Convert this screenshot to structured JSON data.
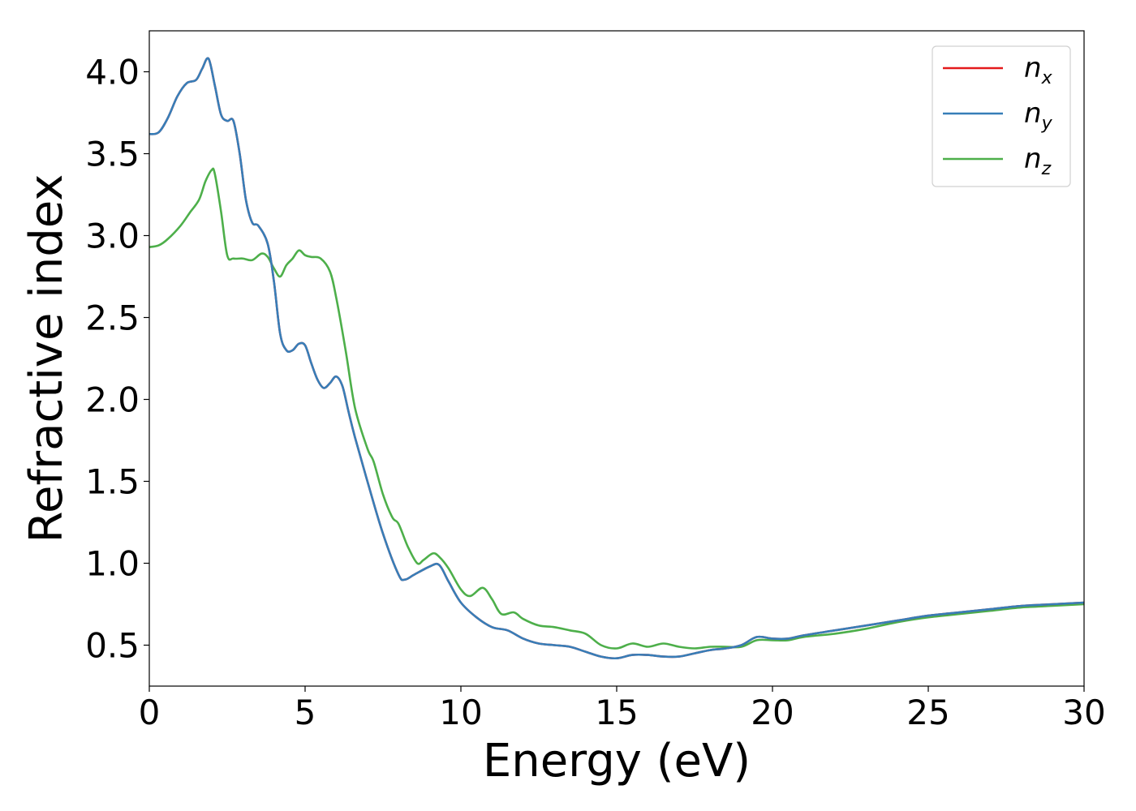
{
  "chart_data": {
    "type": "line",
    "xlabel": "Energy (eV)",
    "ylabel": "Refractive index",
    "xlim": [
      0,
      30
    ],
    "ylim": [
      0.25,
      4.25
    ],
    "xticks": [
      0,
      5,
      10,
      15,
      20,
      25,
      30
    ],
    "xtick_labels": [
      "0",
      "5",
      "10",
      "15",
      "20",
      "25",
      "30"
    ],
    "yticks": [
      0.5,
      1.0,
      1.5,
      2.0,
      2.5,
      3.0,
      3.5,
      4.0
    ],
    "ytick_labels": [
      "0.5",
      "1.0",
      "1.5",
      "2.0",
      "2.5",
      "3.0",
      "3.5",
      "4.0"
    ],
    "grid": false,
    "legend_position": "top-right",
    "series": [
      {
        "name": "n",
        "subscript": "x",
        "color": "#e41a1c",
        "x": [
          0,
          0.3,
          0.6,
          0.9,
          1.2,
          1.5,
          1.7,
          1.9,
          2.1,
          2.3,
          2.5,
          2.7,
          2.9,
          3.1,
          3.3,
          3.5,
          3.8,
          4.0,
          4.2,
          4.4,
          4.6,
          4.8,
          5.0,
          5.2,
          5.4,
          5.6,
          5.8,
          6.0,
          6.2,
          6.4,
          6.6,
          7.0,
          7.5,
          8.0,
          8.2,
          8.5,
          9.0,
          9.3,
          9.6,
          10.0,
          10.5,
          11.0,
          11.5,
          12.0,
          12.5,
          13.0,
          13.5,
          14.0,
          14.5,
          15.0,
          15.5,
          16.0,
          16.5,
          17.0,
          17.5,
          18.0,
          18.5,
          19.0,
          19.5,
          20.0,
          20.5,
          21.0,
          22.0,
          23.0,
          24.0,
          25.0,
          26.0,
          27.0,
          28.0,
          29.0,
          30.0
        ],
        "values": [
          3.62,
          3.63,
          3.72,
          3.85,
          3.93,
          3.95,
          4.02,
          4.08,
          3.92,
          3.74,
          3.7,
          3.7,
          3.5,
          3.22,
          3.08,
          3.06,
          2.95,
          2.72,
          2.4,
          2.3,
          2.3,
          2.34,
          2.33,
          2.22,
          2.12,
          2.07,
          2.1,
          2.14,
          2.08,
          1.92,
          1.77,
          1.5,
          1.18,
          0.93,
          0.9,
          0.93,
          0.98,
          0.99,
          0.89,
          0.76,
          0.67,
          0.61,
          0.59,
          0.54,
          0.51,
          0.5,
          0.49,
          0.46,
          0.43,
          0.42,
          0.44,
          0.44,
          0.43,
          0.43,
          0.45,
          0.47,
          0.48,
          0.5,
          0.55,
          0.54,
          0.54,
          0.56,
          0.59,
          0.62,
          0.65,
          0.68,
          0.7,
          0.72,
          0.74,
          0.75,
          0.76
        ]
      },
      {
        "name": "n",
        "subscript": "y",
        "color": "#377eb8",
        "x": [
          0,
          0.3,
          0.6,
          0.9,
          1.2,
          1.5,
          1.7,
          1.9,
          2.1,
          2.3,
          2.5,
          2.7,
          2.9,
          3.1,
          3.3,
          3.5,
          3.8,
          4.0,
          4.2,
          4.4,
          4.6,
          4.8,
          5.0,
          5.2,
          5.4,
          5.6,
          5.8,
          6.0,
          6.2,
          6.4,
          6.6,
          7.0,
          7.5,
          8.0,
          8.2,
          8.5,
          9.0,
          9.3,
          9.6,
          10.0,
          10.5,
          11.0,
          11.5,
          12.0,
          12.5,
          13.0,
          13.5,
          14.0,
          14.5,
          15.0,
          15.5,
          16.0,
          16.5,
          17.0,
          17.5,
          18.0,
          18.5,
          19.0,
          19.5,
          20.0,
          20.5,
          21.0,
          22.0,
          23.0,
          24.0,
          25.0,
          26.0,
          27.0,
          28.0,
          29.0,
          30.0
        ],
        "values": [
          3.62,
          3.63,
          3.72,
          3.85,
          3.93,
          3.95,
          4.02,
          4.08,
          3.92,
          3.74,
          3.7,
          3.7,
          3.5,
          3.22,
          3.08,
          3.06,
          2.95,
          2.72,
          2.4,
          2.3,
          2.3,
          2.34,
          2.33,
          2.22,
          2.12,
          2.07,
          2.1,
          2.14,
          2.08,
          1.92,
          1.77,
          1.5,
          1.18,
          0.93,
          0.9,
          0.93,
          0.98,
          0.99,
          0.89,
          0.76,
          0.67,
          0.61,
          0.59,
          0.54,
          0.51,
          0.5,
          0.49,
          0.46,
          0.43,
          0.42,
          0.44,
          0.44,
          0.43,
          0.43,
          0.45,
          0.47,
          0.48,
          0.5,
          0.55,
          0.54,
          0.54,
          0.56,
          0.59,
          0.62,
          0.65,
          0.68,
          0.7,
          0.72,
          0.74,
          0.75,
          0.76
        ]
      },
      {
        "name": "n",
        "subscript": "z",
        "color": "#4daf4a",
        "x": [
          0,
          0.3,
          0.6,
          1.0,
          1.3,
          1.6,
          1.8,
          2.0,
          2.1,
          2.3,
          2.5,
          2.7,
          3.0,
          3.3,
          3.6,
          3.8,
          4.0,
          4.2,
          4.4,
          4.6,
          4.8,
          5.0,
          5.2,
          5.5,
          5.8,
          6.0,
          6.3,
          6.6,
          7.0,
          7.2,
          7.5,
          7.8,
          8.0,
          8.3,
          8.6,
          8.8,
          9.1,
          9.3,
          9.6,
          10.0,
          10.3,
          10.7,
          11.0,
          11.3,
          11.7,
          12.0,
          12.5,
          13.0,
          13.5,
          14.0,
          14.5,
          15.0,
          15.5,
          16.0,
          16.5,
          17.0,
          17.5,
          18.0,
          18.5,
          19.0,
          19.5,
          20.0,
          20.5,
          21.0,
          22.0,
          23.0,
          24.0,
          25.0,
          26.0,
          27.0,
          28.0,
          29.0,
          30.0
        ],
        "values": [
          2.93,
          2.94,
          2.98,
          3.06,
          3.14,
          3.22,
          3.33,
          3.4,
          3.38,
          3.15,
          2.88,
          2.86,
          2.86,
          2.85,
          2.89,
          2.87,
          2.8,
          2.75,
          2.82,
          2.86,
          2.91,
          2.88,
          2.87,
          2.86,
          2.78,
          2.62,
          2.3,
          1.95,
          1.7,
          1.62,
          1.42,
          1.28,
          1.24,
          1.1,
          1.0,
          1.02,
          1.06,
          1.04,
          0.97,
          0.84,
          0.8,
          0.85,
          0.78,
          0.69,
          0.7,
          0.66,
          0.62,
          0.61,
          0.59,
          0.57,
          0.5,
          0.48,
          0.51,
          0.49,
          0.51,
          0.49,
          0.48,
          0.49,
          0.49,
          0.49,
          0.53,
          0.53,
          0.53,
          0.55,
          0.57,
          0.6,
          0.64,
          0.67,
          0.69,
          0.71,
          0.73,
          0.74,
          0.75
        ]
      }
    ]
  }
}
